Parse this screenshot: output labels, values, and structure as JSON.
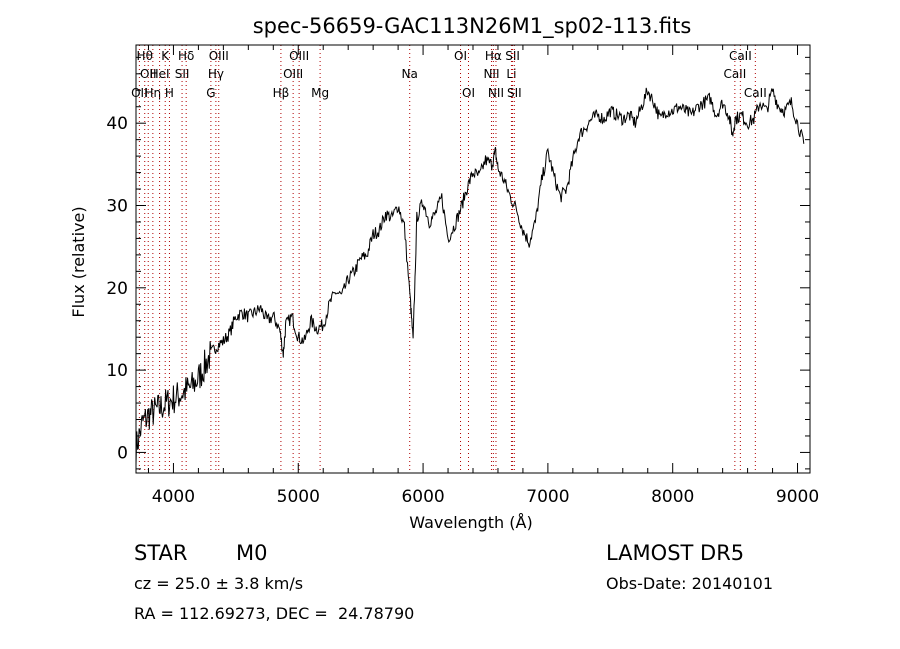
{
  "chart_data": {
    "type": "line",
    "title": "spec-56659-GAC113N26M1_sp02-113.fits",
    "xlabel": "Wavelength (Å)",
    "ylabel": "Flux (relative)",
    "xlim": [
      3700,
      9100
    ],
    "ylim": [
      -2.5,
      49.5
    ],
    "x_ticks": [
      4000,
      5000,
      6000,
      7000,
      8000,
      9000
    ],
    "y_ticks": [
      0,
      10,
      20,
      30,
      40
    ],
    "grid": false,
    "legend": "none",
    "line_color": "#000000",
    "marker_color": "#b00000",
    "series": [
      {
        "x": [
          3700,
          3750,
          3800,
          3850,
          3900,
          3950,
          4000,
          4050,
          4100,
          4150,
          4200,
          4250,
          4300,
          4350,
          4400,
          4450,
          4500,
          4550,
          4600,
          4650,
          4700,
          4750,
          4800,
          4850,
          4880,
          4900,
          4950,
          5000,
          5050,
          5100,
          5150,
          5200,
          5250,
          5300,
          5350,
          5400,
          5450,
          5500,
          5550,
          5600,
          5650,
          5700,
          5750,
          5800,
          5850,
          5900,
          5920,
          5950,
          6000,
          6050,
          6100,
          6150,
          6200,
          6250,
          6300,
          6350,
          6400,
          6450,
          6500,
          6550,
          6580,
          6600,
          6650,
          6700,
          6750,
          6800,
          6850,
          6900,
          6950,
          7000,
          7050,
          7100,
          7150,
          7200,
          7250,
          7300,
          7350,
          7400,
          7450,
          7500,
          7550,
          7600,
          7650,
          7700,
          7750,
          7800,
          7850,
          7900,
          7950,
          8000,
          8050,
          8100,
          8150,
          8200,
          8250,
          8300,
          8350,
          8400,
          8450,
          8480,
          8500,
          8550,
          8600,
          8650,
          8700,
          8750,
          8800,
          8850,
          8900,
          8950,
          9000,
          9050
        ],
        "y": [
          0.5,
          3.5,
          4.5,
          5.0,
          5.5,
          6.0,
          6.5,
          7.0,
          7.5,
          8.0,
          9.0,
          10.5,
          12.0,
          13.0,
          13.5,
          14.5,
          16.5,
          17.0,
          16.5,
          17.0,
          17.5,
          16.0,
          16.5,
          15.0,
          12.0,
          15.5,
          16.5,
          14.0,
          13.5,
          16.0,
          15.0,
          15.5,
          18.0,
          19.5,
          19.0,
          21.0,
          22.0,
          23.5,
          24.0,
          26.5,
          27.0,
          29.0,
          28.5,
          30.0,
          27.5,
          18.0,
          13.5,
          28.5,
          30.5,
          28.0,
          29.0,
          31.0,
          26.0,
          27.5,
          29.5,
          32.0,
          34.0,
          33.5,
          35.5,
          35.0,
          36.5,
          34.5,
          33.0,
          31.0,
          29.5,
          27.0,
          25.5,
          28.0,
          33.0,
          36.5,
          33.5,
          31.0,
          32.0,
          35.5,
          38.5,
          39.5,
          40.5,
          41.0,
          40.5,
          41.5,
          41.0,
          40.5,
          41.0,
          40.0,
          42.0,
          44.0,
          42.5,
          40.5,
          41.5,
          41.5,
          42.0,
          41.5,
          41.0,
          42.0,
          42.5,
          43.0,
          41.0,
          42.5,
          41.0,
          38.5,
          40.5,
          41.0,
          40.0,
          40.5,
          42.5,
          41.5,
          44.0,
          42.0,
          41.5,
          42.5,
          40.0,
          37.5
        ]
      }
    ],
    "line_markers": [
      {
        "x": 3727,
        "label": "OII",
        "row": 3
      },
      {
        "x": 3770,
        "label": "Hθ",
        "row": 1
      },
      {
        "x": 3798,
        "label": "OII",
        "row": 2
      },
      {
        "x": 3835,
        "label": "Hη",
        "row": 3
      },
      {
        "x": 3889,
        "label": "HeI",
        "row": 2
      },
      {
        "x": 3934,
        "label": "K",
        "row": 1
      },
      {
        "x": 3968,
        "label": "H",
        "row": 3
      },
      {
        "x": 4069,
        "label": "SII",
        "row": 2
      },
      {
        "x": 4102,
        "label": "Hδ",
        "row": 1
      },
      {
        "x": 4300,
        "label": "G",
        "row": 3
      },
      {
        "x": 4340,
        "label": "Hγ",
        "row": 2
      },
      {
        "x": 4363,
        "label": "OIII",
        "row": 1
      },
      {
        "x": 4861,
        "label": "Hβ",
        "row": 3
      },
      {
        "x": 4959,
        "label": "OIII",
        "row": 2
      },
      {
        "x": 5007,
        "label": "OIII",
        "row": 1
      },
      {
        "x": 5175,
        "label": "Mg",
        "row": 3
      },
      {
        "x": 5893,
        "label": "Na",
        "row": 2
      },
      {
        "x": 6300,
        "label": "OI",
        "row": 1
      },
      {
        "x": 6364,
        "label": "OI",
        "row": 3
      },
      {
        "x": 6548,
        "label": "NII",
        "row": 2
      },
      {
        "x": 6563,
        "label": "Hα",
        "row": 1
      },
      {
        "x": 6584,
        "label": "NII",
        "row": 3
      },
      {
        "x": 6708,
        "label": "Li",
        "row": 2
      },
      {
        "x": 6717,
        "label": "SII",
        "row": 1
      },
      {
        "x": 6731,
        "label": "SII",
        "row": 3
      },
      {
        "x": 8498,
        "label": "CaII",
        "row": 2
      },
      {
        "x": 8542,
        "label": "CaII",
        "row": 1
      },
      {
        "x": 8662,
        "label": "CaII",
        "row": 3
      }
    ]
  },
  "info": {
    "class": "STAR",
    "subclass": "M0",
    "survey": "LAMOST DR5",
    "cz": "cz = 25.0 ± 3.8 km/s",
    "obs_date": "Obs-Date: 20140101",
    "radec": "RA = 112.69273, DEC =  24.78790"
  }
}
